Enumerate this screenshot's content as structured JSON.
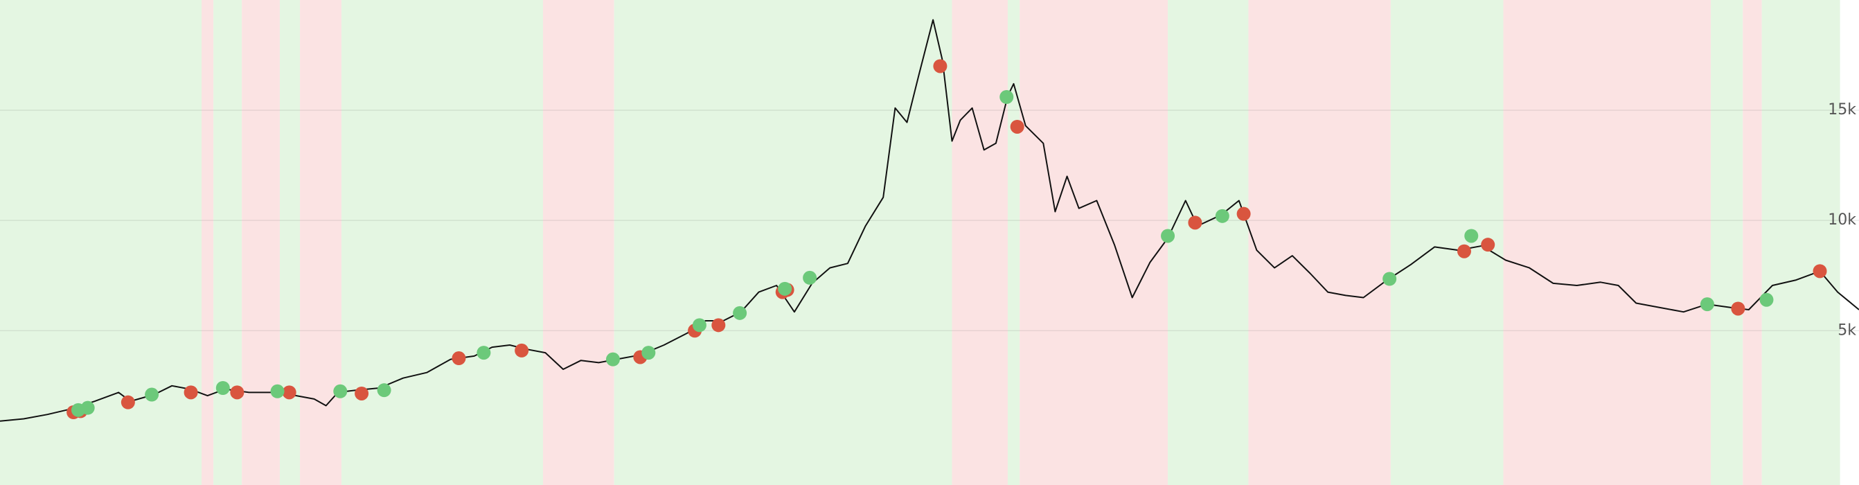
{
  "chart_data": {
    "type": "line",
    "xlim": [
      0,
      1568
    ],
    "ylim": [
      -2000,
      20000
    ],
    "yticks": [
      {
        "value": 5000,
        "label": "5k"
      },
      {
        "value": 10000,
        "label": "10k"
      },
      {
        "value": 15000,
        "label": "15k"
      }
    ],
    "grid": true,
    "line_color": "#111111",
    "bands": [
      {
        "from": 0,
        "to": 170,
        "color": "#e4f6e2"
      },
      {
        "from": 170,
        "to": 180,
        "color": "#fbe3e3"
      },
      {
        "from": 180,
        "to": 204,
        "color": "#e4f6e2"
      },
      {
        "from": 204,
        "to": 236,
        "color": "#fbe3e3"
      },
      {
        "from": 236,
        "to": 253,
        "color": "#e4f6e2"
      },
      {
        "from": 253,
        "to": 288,
        "color": "#fbe3e3"
      },
      {
        "from": 288,
        "to": 458,
        "color": "#e4f6e2"
      },
      {
        "from": 458,
        "to": 518,
        "color": "#fbe3e3"
      },
      {
        "from": 518,
        "to": 803,
        "color": "#e4f6e2"
      },
      {
        "from": 803,
        "to": 850,
        "color": "#fbe3e3"
      },
      {
        "from": 850,
        "to": 860,
        "color": "#e4f6e2"
      },
      {
        "from": 860,
        "to": 985,
        "color": "#fbe3e3"
      },
      {
        "from": 985,
        "to": 1053,
        "color": "#e4f6e2"
      },
      {
        "from": 1053,
        "to": 1173,
        "color": "#fbe3e3"
      },
      {
        "from": 1173,
        "to": 1268,
        "color": "#e4f6e2"
      },
      {
        "from": 1268,
        "to": 1443,
        "color": "#fbe3e3"
      },
      {
        "from": 1443,
        "to": 1470,
        "color": "#e4f6e2"
      },
      {
        "from": 1470,
        "to": 1486,
        "color": "#fbe3e3"
      },
      {
        "from": 1486,
        "to": 1552,
        "color": "#e4f6e2"
      }
    ],
    "x": [
      0,
      20,
      40,
      60,
      80,
      100,
      110,
      130,
      145,
      160,
      175,
      190,
      210,
      230,
      250,
      265,
      275,
      285,
      300,
      320,
      340,
      360,
      380,
      400,
      415,
      430,
      445,
      460,
      475,
      490,
      505,
      520,
      540,
      560,
      580,
      595,
      610,
      625,
      640,
      655,
      670,
      685,
      700,
      715,
      730,
      745,
      755,
      765,
      775,
      787,
      795,
      803,
      810,
      820,
      830,
      840,
      850,
      855,
      865,
      880,
      890,
      900,
      910,
      925,
      940,
      955,
      970,
      985,
      1000,
      1010,
      1030,
      1045,
      1060,
      1075,
      1090,
      1105,
      1120,
      1135,
      1150,
      1170,
      1190,
      1210,
      1230,
      1250,
      1270,
      1290,
      1310,
      1330,
      1350,
      1365,
      1380,
      1400,
      1420,
      1440,
      1460,
      1475,
      1495,
      1515,
      1535,
      1550,
      1568
    ],
    "values": [
      900,
      1000,
      1200,
      1450,
      1800,
      2200,
      1800,
      2100,
      2500,
      2350,
      2050,
      2350,
      2200,
      2200,
      2050,
      1900,
      1600,
      2200,
      2300,
      2400,
      2850,
      3100,
      3700,
      3850,
      4250,
      4350,
      4150,
      4000,
      3250,
      3650,
      3550,
      3700,
      3900,
      4350,
      4900,
      5450,
      5450,
      5850,
      6750,
      7050,
      5850,
      7150,
      7850,
      8050,
      9750,
      11050,
      15100,
      14450,
      16600,
      19100,
      17250,
      13600,
      14550,
      15100,
      13200,
      13500,
      15650,
      16200,
      14300,
      13500,
      10400,
      12000,
      10550,
      10900,
      8900,
      6500,
      8100,
      9200,
      10900,
      9750,
      10250,
      10900,
      8650,
      7850,
      8400,
      7600,
      6750,
      6600,
      6500,
      7300,
      8000,
      8800,
      8650,
      8850,
      8200,
      7850,
      7150,
      7050,
      7200,
      7050,
      6250,
      6050,
      5850,
      6200,
      6050,
      5950,
      7050,
      7300,
      7700,
      6750,
      5950
    ],
    "markers": [
      {
        "color": "#d9553f",
        "x": [
          62,
          68,
          108,
          161,
          200,
          244,
          305,
          387,
          440,
          540,
          586,
          606,
          660,
          664,
          793,
          858,
          1008,
          1049,
          1235,
          1255,
          1466,
          1535
        ],
        "values": [
          1300,
          1350,
          1750,
          2200,
          2200,
          2200,
          2150,
          3750,
          4100,
          3800,
          5000,
          5250,
          6750,
          6850,
          17000,
          14250,
          9900,
          10300,
          8600,
          8900,
          6000,
          7700
        ]
      },
      {
        "color": "#6cc97a",
        "x": [
          66,
          74,
          128,
          188,
          234,
          287,
          324,
          408,
          517,
          547,
          590,
          624,
          662,
          683,
          849,
          985,
          1031,
          1172,
          1241,
          1440,
          1490
        ],
        "values": [
          1400,
          1500,
          2100,
          2400,
          2250,
          2250,
          2300,
          4000,
          3700,
          4000,
          5250,
          5800,
          6900,
          7400,
          15600,
          9300,
          10200,
          7350,
          9300,
          6200,
          6400
        ]
      }
    ]
  }
}
